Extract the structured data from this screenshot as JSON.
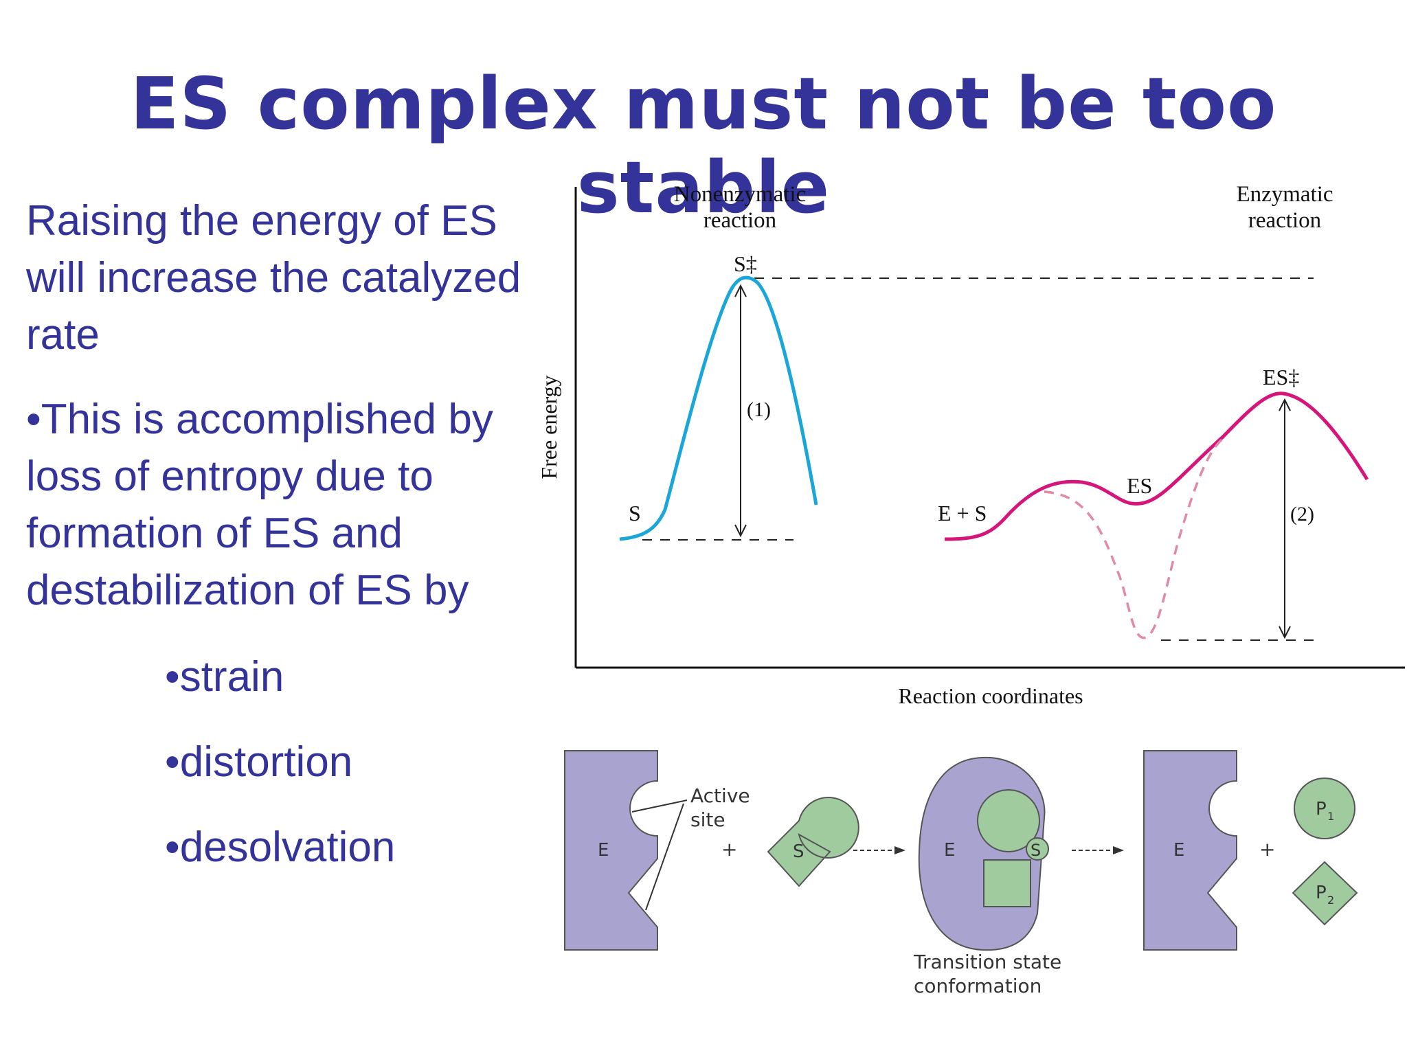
{
  "slide": {
    "title": "ES complex must not be too stable",
    "paragraph_1": "Raising the energy of ES will increase the catalyzed rate",
    "paragraph_2": "•This is accomplished by loss of entropy due to formation of ES and destabilization of ES by",
    "sub_bullets": [
      "•strain",
      "•distortion",
      "•desolvation"
    ]
  },
  "energy_diagram": {
    "y_axis_label": "Free energy",
    "x_axis_label": "Reaction coordinates",
    "nonenzymatic_label_1": "Nonenzymatic",
    "nonenzymatic_label_2": "reaction",
    "enzymatic_label_1": "Enzymatic",
    "enzymatic_label_2": "reaction",
    "s_label": "S",
    "s_ts_label": "S‡",
    "e_plus_s_label": "E + S",
    "es_label": "ES",
    "es_ts_label": "ES‡",
    "barrier_1_label": "(1)",
    "barrier_2_label": "(2)",
    "colors": {
      "nonenzymatic": "#1aa6d8",
      "enzymatic": "#d6157a",
      "enzymatic_dashed": "#e08aa8"
    }
  },
  "mechanism": {
    "enzyme_label": "E",
    "substrate_label": "S",
    "active_site_label_1": "Active",
    "active_site_label_2": "site",
    "plus": "+",
    "transition_label_1": "Transition state",
    "transition_label_2": "conformation",
    "product_1_label": "P",
    "product_1_sub": "1",
    "product_2_label": "P",
    "product_2_sub": "2",
    "colors": {
      "enzyme": "#a9a4cf",
      "substrate": "#9fcb9f"
    }
  }
}
